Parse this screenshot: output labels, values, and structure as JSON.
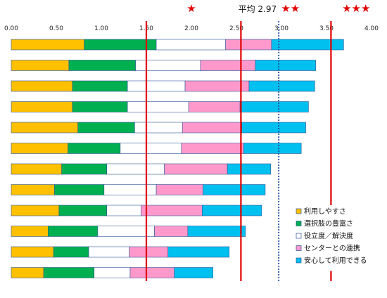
{
  "chart_data": {
    "type": "bar",
    "orientation": "horizontal",
    "stacked": true,
    "xlim": [
      0,
      4.0
    ],
    "x_ticks": [
      "0.00",
      "0.50",
      "1.00",
      "1.50",
      "2.00",
      "2.50",
      "3.00",
      "3.50",
      "4.00"
    ],
    "categories": [
      "",
      "",
      "",
      "",
      "",
      "",
      "",
      "",
      "",
      "",
      "",
      ""
    ],
    "series": [
      {
        "name": "利用しやすさ",
        "color": "#FFC000",
        "values": [
          0.81,
          0.64,
          0.68,
          0.68,
          0.74,
          0.63,
          0.56,
          0.48,
          0.53,
          0.41,
          0.47,
          0.36
        ]
      },
      {
        "name": "選択肢の豊富さ",
        "color": "#00B050",
        "values": [
          0.8,
          0.74,
          0.61,
          0.61,
          0.63,
          0.58,
          0.5,
          0.55,
          0.53,
          0.55,
          0.39,
          0.56
        ]
      },
      {
        "name": "役立度／解決度",
        "color": "#FFFFFF",
        "values": [
          0.77,
          0.72,
          0.64,
          0.68,
          0.53,
          0.68,
          0.64,
          0.58,
          0.38,
          0.63,
          0.45,
          0.4
        ]
      },
      {
        "name": "センターとの連携",
        "color": "#FF99CC",
        "values": [
          0.51,
          0.61,
          0.71,
          0.57,
          0.66,
          0.69,
          0.7,
          0.52,
          0.68,
          0.37,
          0.43,
          0.49
        ]
      },
      {
        "name": "安心して利用できる",
        "color": "#00C0F0",
        "values": [
          0.8,
          0.67,
          0.73,
          0.76,
          0.71,
          0.64,
          0.48,
          0.69,
          0.66,
          0.64,
          0.68,
          0.43
        ]
      }
    ],
    "average": {
      "value": 2.97,
      "label": "平均 2.97",
      "color": "#1F4E9D",
      "style": "dotted"
    },
    "thresholds": [
      {
        "value": 1.5,
        "label": "",
        "color": "#E00000"
      },
      {
        "value": 2.55,
        "label": "★",
        "color": "#E00000"
      },
      {
        "value": 3.55,
        "label": "★★",
        "color": "#E00000"
      }
    ],
    "star_marks": [
      {
        "value": 2.0,
        "label": "★"
      },
      {
        "value": 3.1,
        "label": "★★"
      },
      {
        "value": 3.83,
        "label": "★★★"
      }
    ],
    "legend": {
      "position": "bottom-right"
    },
    "grid": false,
    "title": "",
    "xlabel": "",
    "ylabel": ""
  }
}
